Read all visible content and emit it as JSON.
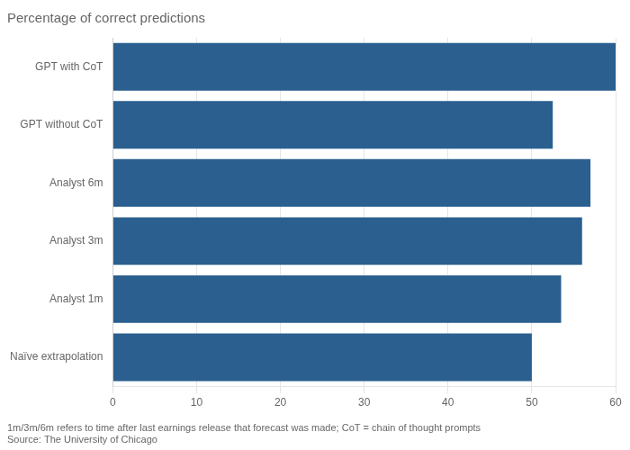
{
  "chart_data": {
    "type": "bar",
    "orientation": "horizontal",
    "title": "Percentage of correct predictions",
    "categories": [
      "Naïve extrapolation",
      "Analyst 1m",
      "Analyst 3m",
      "Analyst 6m",
      "GPT without CoT",
      "GPT with CoT"
    ],
    "values": [
      50.0,
      53.5,
      56.0,
      57.0,
      52.5,
      60.0
    ],
    "color": "#2a5f8f",
    "xlim": [
      0,
      60
    ],
    "xticks": [
      0,
      10,
      20,
      30,
      40,
      50,
      60
    ],
    "grid": true,
    "annotations": [
      "1m/3m/6m refers to time after last earnings release that forecast was made; CoT = chain of thought prompts",
      "Source: The University of Chicago"
    ]
  }
}
